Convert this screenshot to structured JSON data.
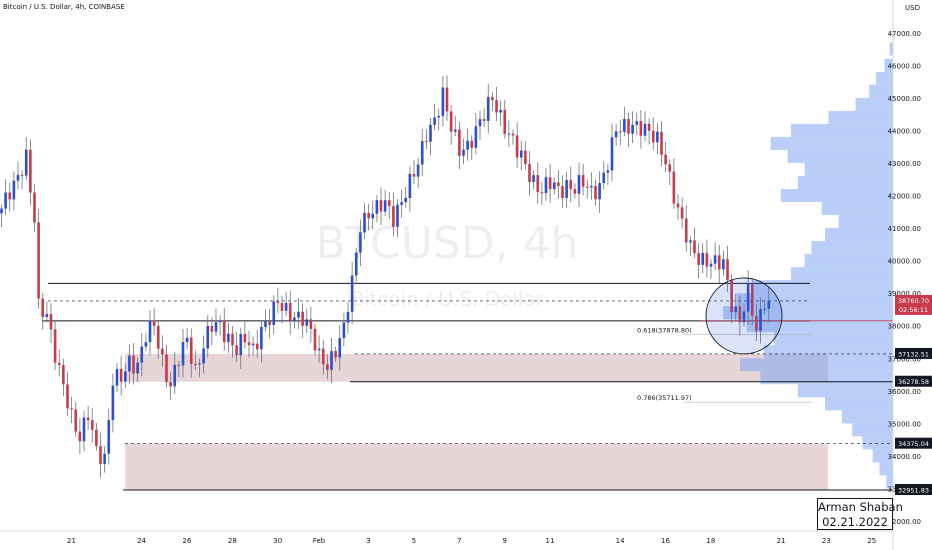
{
  "header": {
    "symbol": "Bitcoin / U.S. Dollar, 4h, COINBASE"
  },
  "watermark": {
    "ticker": "BTCUSD, 4h",
    "name": "Bitcoin / U.S. Dollar"
  },
  "author": {
    "name": "Arman Shaban",
    "date": "02.21.2022"
  },
  "colors": {
    "up": "#2a4fd0",
    "down": "#c93a4a",
    "zone": "#ddc3c6",
    "profile": "#7fa6f3",
    "wick": "#6b6f78",
    "highlight_circle": "#3a62d8"
  },
  "chart_data": {
    "type": "candlestick",
    "title": "Bitcoin / U.S. Dollar, 4h, COINBASE",
    "xlabel": "",
    "ylabel": "USD",
    "y_unit_label": "USD",
    "ylim": [
      32000,
      47000
    ],
    "yticks": [
      32000,
      33000,
      34000,
      35000,
      36000,
      37000,
      38000,
      39000,
      40000,
      41000,
      42000,
      43000,
      44000,
      45000,
      46000,
      47000
    ],
    "xticks": [
      {
        "label": "21",
        "bar": 8
      },
      {
        "label": "24",
        "bar": 25
      },
      {
        "label": "26",
        "bar": 36
      },
      {
        "label": "28",
        "bar": 47
      },
      {
        "label": "30",
        "bar": 58
      },
      {
        "label": "Feb",
        "bar": 68
      },
      {
        "label": "3",
        "bar": 80
      },
      {
        "label": "5",
        "bar": 91
      },
      {
        "label": "7",
        "bar": 102
      },
      {
        "label": "9",
        "bar": 113
      },
      {
        "label": "11",
        "bar": 124
      },
      {
        "label": "14",
        "bar": 141
      },
      {
        "label": "16",
        "bar": 152
      },
      {
        "label": "18",
        "bar": 163
      },
      {
        "label": "21",
        "bar": 180
      },
      {
        "label": "23",
        "bar": 191
      },
      {
        "label": "25",
        "bar": 202
      }
    ],
    "close_anchors": [
      {
        "bar": 0,
        "price": 41600
      },
      {
        "bar": 3,
        "price": 42200
      },
      {
        "bar": 6,
        "price": 43300
      },
      {
        "bar": 8,
        "price": 41300
      },
      {
        "bar": 9,
        "price": 38500
      },
      {
        "bar": 11,
        "price": 38200
      },
      {
        "bar": 13,
        "price": 37200
      },
      {
        "bar": 15,
        "price": 36300
      },
      {
        "bar": 17,
        "price": 35100
      },
      {
        "bar": 19,
        "price": 34400
      },
      {
        "bar": 21,
        "price": 35400
      },
      {
        "bar": 23,
        "price": 34300
      },
      {
        "bar": 25,
        "price": 33800
      },
      {
        "bar": 27,
        "price": 36200
      },
      {
        "bar": 29,
        "price": 36500
      },
      {
        "bar": 31,
        "price": 37000
      },
      {
        "bar": 33,
        "price": 36700
      },
      {
        "bar": 35,
        "price": 37600
      },
      {
        "bar": 37,
        "price": 38100
      },
      {
        "bar": 39,
        "price": 37000
      },
      {
        "bar": 41,
        "price": 36100
      },
      {
        "bar": 43,
        "price": 36900
      },
      {
        "bar": 45,
        "price": 37600
      },
      {
        "bar": 47,
        "price": 36700
      },
      {
        "bar": 49,
        "price": 37400
      },
      {
        "bar": 51,
        "price": 37900
      },
      {
        "bar": 53,
        "price": 38000
      },
      {
        "bar": 55,
        "price": 37700
      },
      {
        "bar": 57,
        "price": 37300
      },
      {
        "bar": 59,
        "price": 37500
      },
      {
        "bar": 61,
        "price": 37200
      },
      {
        "bar": 63,
        "price": 38000
      },
      {
        "bar": 65,
        "price": 38300
      },
      {
        "bar": 67,
        "price": 38600
      },
      {
        "bar": 69,
        "price": 38400
      },
      {
        "bar": 71,
        "price": 38400
      },
      {
        "bar": 73,
        "price": 38300
      },
      {
        "bar": 75,
        "price": 37700
      },
      {
        "bar": 77,
        "price": 37000
      },
      {
        "bar": 79,
        "price": 36900
      },
      {
        "bar": 81,
        "price": 37300
      },
      {
        "bar": 83,
        "price": 37800
      },
      {
        "bar": 85,
        "price": 39300
      },
      {
        "bar": 87,
        "price": 41200
      },
      {
        "bar": 89,
        "price": 41500
      },
      {
        "bar": 91,
        "price": 41500
      },
      {
        "bar": 93,
        "price": 41700
      },
      {
        "bar": 95,
        "price": 41400
      },
      {
        "bar": 97,
        "price": 41900
      },
      {
        "bar": 99,
        "price": 42300
      },
      {
        "bar": 101,
        "price": 42900
      },
      {
        "bar": 103,
        "price": 44000
      },
      {
        "bar": 105,
        "price": 44400
      },
      {
        "bar": 107,
        "price": 45000
      },
      {
        "bar": 109,
        "price": 44000
      },
      {
        "bar": 111,
        "price": 43500
      },
      {
        "bar": 113,
        "price": 43600
      },
      {
        "bar": 115,
        "price": 43900
      },
      {
        "bar": 117,
        "price": 44400
      },
      {
        "bar": 119,
        "price": 45100
      },
      {
        "bar": 121,
        "price": 44500
      },
      {
        "bar": 123,
        "price": 43800
      },
      {
        "bar": 125,
        "price": 43300
      },
      {
        "bar": 127,
        "price": 43000
      },
      {
        "bar": 129,
        "price": 42500
      },
      {
        "bar": 131,
        "price": 42100
      },
      {
        "bar": 133,
        "price": 42300
      },
      {
        "bar": 135,
        "price": 42200
      },
      {
        "bar": 137,
        "price": 42400
      },
      {
        "bar": 139,
        "price": 42200
      },
      {
        "bar": 141,
        "price": 42300
      },
      {
        "bar": 143,
        "price": 42100
      },
      {
        "bar": 145,
        "price": 42400
      },
      {
        "bar": 147,
        "price": 43000
      },
      {
        "bar": 149,
        "price": 43900
      },
      {
        "bar": 151,
        "price": 44100
      },
      {
        "bar": 153,
        "price": 44300
      },
      {
        "bar": 155,
        "price": 44100
      },
      {
        "bar": 157,
        "price": 43800
      },
      {
        "bar": 159,
        "price": 43700
      },
      {
        "bar": 161,
        "price": 43200
      },
      {
        "bar": 163,
        "price": 42000
      },
      {
        "bar": 165,
        "price": 41000
      },
      {
        "bar": 167,
        "price": 40400
      },
      {
        "bar": 169,
        "price": 40200
      },
      {
        "bar": 171,
        "price": 40000
      },
      {
        "bar": 173,
        "price": 39800
      },
      {
        "bar": 175,
        "price": 39900
      },
      {
        "bar": 177,
        "price": 38800
      },
      {
        "bar": 179,
        "price": 38200
      },
      {
        "bar": 181,
        "price": 38900
      },
      {
        "bar": 183,
        "price": 37800
      },
      {
        "bar": 185,
        "price": 38900
      },
      {
        "bar": 186,
        "price": 38760
      }
    ],
    "bar_count": 187,
    "levels": [
      {
        "name": "upper box top",
        "price": 39300,
        "style": "solid"
      },
      {
        "name": "mid dashed",
        "price": 38760,
        "style": "dashed"
      },
      {
        "name": "lower box bottom",
        "price": 38150,
        "style": "solid"
      },
      {
        "name": "37132.51",
        "price": 37132.51,
        "style": "dashed"
      },
      {
        "name": "36278.58",
        "price": 36278.58,
        "style": "solid"
      },
      {
        "name": "34375.04",
        "price": 34375.04,
        "style": "dashed"
      },
      {
        "name": "32951.83",
        "price": 32951.83,
        "style": "solid"
      }
    ],
    "zones": [
      {
        "from": 36278.58,
        "to": 37132.51
      },
      {
        "from": 32951.83,
        "to": 34375.04
      }
    ],
    "fib_labels": [
      {
        "text": "0.618(37878.80)",
        "price": 37878.8
      },
      {
        "text": "0.786(35711.97)",
        "price": 35711.97
      }
    ],
    "price_labels": [
      {
        "text": "37132.51",
        "price": 37132.51
      },
      {
        "text": "36278.58",
        "price": 36278.58
      },
      {
        "text": "34375.04",
        "price": 34375.04
      },
      {
        "text": "32951.83",
        "price": 32951.83
      }
    ],
    "current_price": {
      "text": "38760.70",
      "countdown": "02:56:11",
      "price": 38760.7
    },
    "volume_profile": [
      {
        "price": 46500,
        "v": 0.02
      },
      {
        "price": 46000,
        "v": 0.05
      },
      {
        "price": 45600,
        "v": 0.1
      },
      {
        "price": 45200,
        "v": 0.14
      },
      {
        "price": 44800,
        "v": 0.22
      },
      {
        "price": 44400,
        "v": 0.38
      },
      {
        "price": 44000,
        "v": 0.6
      },
      {
        "price": 43600,
        "v": 0.72
      },
      {
        "price": 43200,
        "v": 0.62
      },
      {
        "price": 42800,
        "v": 0.52
      },
      {
        "price": 42400,
        "v": 0.56
      },
      {
        "price": 42000,
        "v": 0.66
      },
      {
        "price": 41600,
        "v": 0.42
      },
      {
        "price": 41200,
        "v": 0.32
      },
      {
        "price": 40800,
        "v": 0.4
      },
      {
        "price": 40400,
        "v": 0.48
      },
      {
        "price": 40000,
        "v": 0.52
      },
      {
        "price": 39600,
        "v": 0.6
      },
      {
        "price": 39200,
        "v": 0.82
      },
      {
        "price": 38800,
        "v": 0.92
      },
      {
        "price": 38400,
        "v": 1.0
      },
      {
        "price": 38000,
        "v": 0.86
      },
      {
        "price": 37600,
        "v": 0.7
      },
      {
        "price": 37200,
        "v": 0.76
      },
      {
        "price": 36800,
        "v": 0.9
      },
      {
        "price": 36400,
        "v": 0.78
      },
      {
        "price": 36000,
        "v": 0.56
      },
      {
        "price": 35600,
        "v": 0.4
      },
      {
        "price": 35200,
        "v": 0.3
      },
      {
        "price": 34800,
        "v": 0.24
      },
      {
        "price": 34400,
        "v": 0.18
      },
      {
        "price": 34000,
        "v": 0.12
      },
      {
        "price": 33600,
        "v": 0.08
      },
      {
        "price": 33200,
        "v": 0.04
      }
    ],
    "highlight": {
      "bar": 180,
      "price": 38300
    }
  }
}
